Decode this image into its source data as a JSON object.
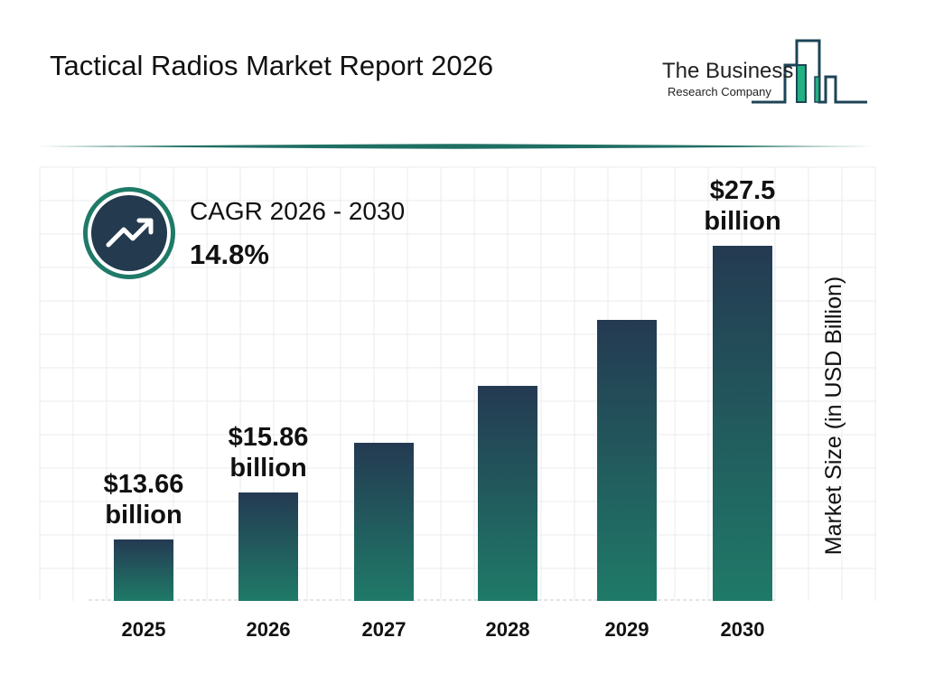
{
  "header": {
    "title": "Tactical Radios Market Report 2026"
  },
  "logo": {
    "line1": "The Business",
    "line2": "Research Company"
  },
  "cagr": {
    "label": "CAGR 2026 - 2030",
    "value": "14.8%",
    "icon": "trending-up-icon"
  },
  "colors": {
    "bar_top": "#243a52",
    "bar_bottom": "#1f7a68",
    "accent": "#1f7a68"
  },
  "chart_data": {
    "type": "bar",
    "title": "Tactical Radios Market Report 2026",
    "ylabel": "Market Size (in USD Billion)",
    "xlabel": "",
    "categories": [
      "2025",
      "2026",
      "2027",
      "2028",
      "2029",
      "2030"
    ],
    "values": [
      13.66,
      15.86,
      18.21,
      20.9,
      24.0,
      27.5
    ],
    "data_labels": [
      [
        "$13.66",
        "billion"
      ],
      [
        "$15.86",
        "billion"
      ],
      null,
      null,
      null,
      [
        "$27.5",
        "billion"
      ]
    ],
    "grid": true
  }
}
